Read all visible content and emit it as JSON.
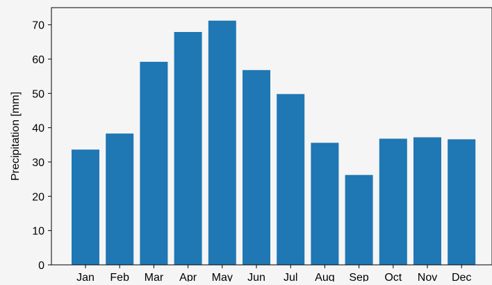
{
  "chart_data": {
    "type": "bar",
    "categories": [
      "Jan",
      "Feb",
      "Mar",
      "Apr",
      "May",
      "Jun",
      "Jul",
      "Aug",
      "Sep",
      "Oct",
      "Nov",
      "Dec"
    ],
    "values": [
      33.6,
      38.3,
      59.2,
      67.9,
      71.2,
      56.8,
      49.8,
      35.6,
      26.2,
      36.8,
      37.2,
      36.6
    ],
    "title": "",
    "xlabel": "",
    "ylabel": "Precipitation [mm]",
    "ylim": [
      0,
      75
    ],
    "yticks": [
      0,
      10,
      20,
      30,
      40,
      50,
      60,
      70
    ],
    "grid": false,
    "bar_color": "#1f77b4",
    "background_color": "#f5f5f5"
  }
}
